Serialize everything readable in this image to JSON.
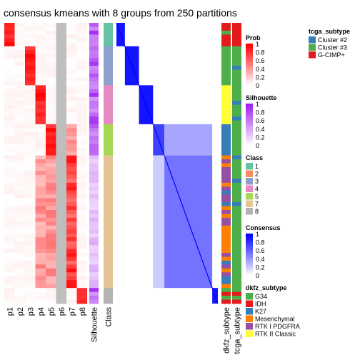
{
  "chart_data": {
    "type": "heatmap",
    "title": "consensus kmeans with 8 groups from 250 partitions",
    "column_labels": [
      "p1",
      "p2",
      "p3",
      "p4",
      "p5",
      "p6",
      "p7",
      "p8",
      "Silhouette",
      "Class",
      "dkfz_subtype",
      "tcga_subtype"
    ],
    "class_blocks": [
      {
        "class": "1",
        "rows": 6,
        "prob_col": 0
      },
      {
        "class": "3",
        "rows": 10,
        "prob_col": 2
      },
      {
        "class": "4",
        "rows": 10,
        "prob_col": 3
      },
      {
        "class": "5",
        "rows": 8,
        "prob_col": 4
      },
      {
        "class": "7",
        "rows": 34,
        "prob_col": 6
      },
      {
        "class": "8",
        "rows": 4,
        "prob_col": 7
      }
    ],
    "legends": {
      "prob": {
        "title": "Prob",
        "ticks": [
          "1",
          "0.8",
          "0.6",
          "0.4",
          "0.2",
          "0"
        ]
      },
      "silhouette": {
        "title": "Silhouette",
        "ticks": [
          "1",
          "0.8",
          "0.6",
          "0.4",
          "0.2",
          "0"
        ]
      },
      "class": {
        "title": "Class",
        "items": [
          {
            "label": "1",
            "color": "#66C2A5"
          },
          {
            "label": "2",
            "color": "#FC8D62"
          },
          {
            "label": "3",
            "color": "#8DA0CB"
          },
          {
            "label": "4",
            "color": "#E78AC3"
          },
          {
            "label": "5",
            "color": "#A6D854"
          },
          {
            "label": "7",
            "color": "#E5C494"
          },
          {
            "label": "8",
            "color": "#B3B3B3"
          }
        ]
      },
      "consensus": {
        "title": "Consensus",
        "ticks": [
          "1",
          "0.8",
          "0.6",
          "0.4",
          "0.2",
          "0"
        ]
      },
      "dkfz_subtype": {
        "title": "dkfz_subtype",
        "items": [
          {
            "label": "G34",
            "color": "#4DAF4A"
          },
          {
            "label": "IDH",
            "color": "#E41A1C"
          },
          {
            "label": "K27",
            "color": "#377EB8"
          },
          {
            "label": "Mesenchymal",
            "color": "#FF7F00"
          },
          {
            "label": "RTK I PDGFRA",
            "color": "#984EA3"
          },
          {
            "label": "RTK II Classic",
            "color": "#FFFF33"
          }
        ]
      },
      "tcga_subtype": {
        "title": "tcga_subtype",
        "items": [
          {
            "label": "Cluster #2",
            "color": "#377EB8"
          },
          {
            "label": "Cluster #3",
            "color": "#4DAF4A"
          },
          {
            "label": "G-CIMP+",
            "color": "#E41A1C"
          }
        ]
      }
    },
    "colors": {
      "prob_high": "#FF0000",
      "consensus_high": "#0000FF",
      "silhouette_high": "#A020F0"
    }
  }
}
